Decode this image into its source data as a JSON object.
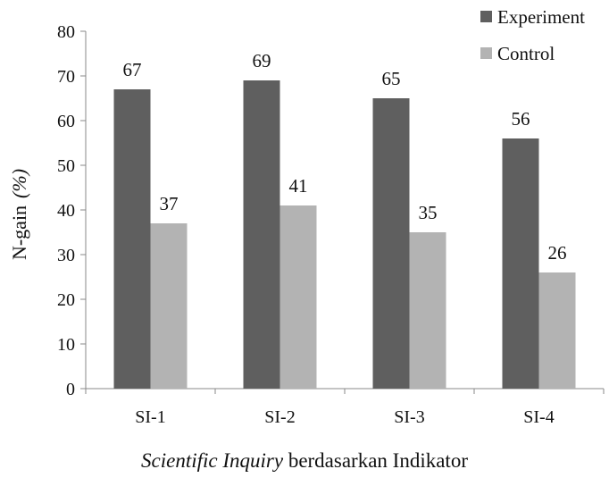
{
  "chart_data": {
    "type": "bar",
    "categories": [
      "SI-1",
      "SI-2",
      "SI-3",
      "SI-4"
    ],
    "series": [
      {
        "name": "Experiment",
        "values": [
          67,
          69,
          65,
          56
        ],
        "color": "#5f5f5f"
      },
      {
        "name": "Control",
        "values": [
          37,
          41,
          35,
          26
        ],
        "color": "#b3b3b3"
      }
    ],
    "ylim": [
      0,
      80
    ],
    "yticks": [
      0,
      10,
      20,
      30,
      40,
      50,
      60,
      70,
      80
    ],
    "ylabel_main": "N-gain",
    "ylabel_unit": "(%)",
    "xlabel_italic": "Scientific Inquiry",
    "xlabel_rest": " berdasarkan Indikator",
    "legend_position": "top-right",
    "grid": false
  }
}
